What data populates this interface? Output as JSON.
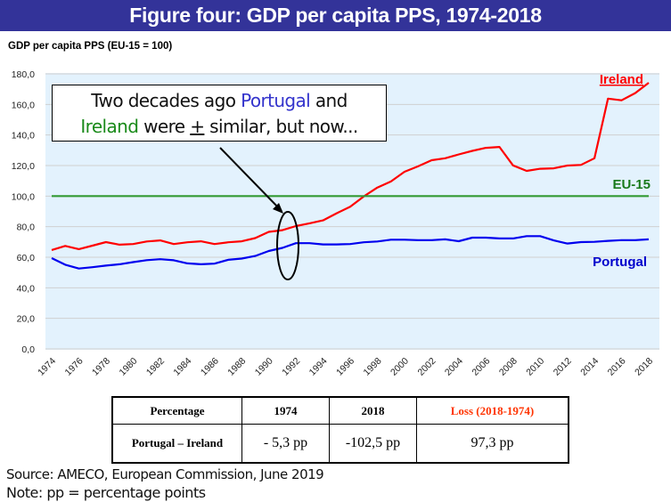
{
  "title": "Figure four: GDP per capita PPS, 1974-2018",
  "callout": {
    "part1": "Two decades ago ",
    "portugal": "Portugal",
    "part2": " and",
    "ireland": "Ireland",
    "part3": " were ",
    "plusminus": "+",
    "part4": " similar, but now..."
  },
  "chart_data": {
    "type": "line",
    "title": "Figure four: GDP per capita PPS, 1974-2018",
    "ylabel": "GDP per capita PPS (EU-15 = 100)",
    "xlabel": "",
    "ylim": [
      0,
      180
    ],
    "yticks": [
      "0,0",
      "20,0",
      "40,0",
      "60,0",
      "80,0",
      "100,0",
      "120,0",
      "140,0",
      "160,0",
      "180,0"
    ],
    "ytick_values": [
      0,
      20,
      40,
      60,
      80,
      100,
      120,
      140,
      160,
      180
    ],
    "grid": true,
    "x": [
      1974,
      1975,
      1976,
      1977,
      1978,
      1979,
      1980,
      1981,
      1982,
      1983,
      1984,
      1985,
      1986,
      1987,
      1988,
      1989,
      1990,
      1991,
      1992,
      1993,
      1994,
      1995,
      1996,
      1997,
      1998,
      1999,
      2000,
      2001,
      2002,
      2003,
      2004,
      2005,
      2006,
      2007,
      2008,
      2009,
      2010,
      2011,
      2012,
      2013,
      2014,
      2015,
      2016,
      2017,
      2018
    ],
    "xtick_labels": [
      "1974",
      "1976",
      "1978",
      "1980",
      "1982",
      "1984",
      "1986",
      "1988",
      "1990",
      "1992",
      "1994",
      "1996",
      "1998",
      "2000",
      "2002",
      "2004",
      "2006",
      "2008",
      "2010",
      "2012",
      "2014",
      "2016",
      "2018"
    ],
    "series": [
      {
        "name": "Ireland",
        "color": "#ff0000",
        "values": [
          64.7,
          67.4,
          65.3,
          67.6,
          69.9,
          68.2,
          68.6,
          70.3,
          71.0,
          68.6,
          69.8,
          70.4,
          68.6,
          69.8,
          70.4,
          72.5,
          76.6,
          77.7,
          80.4,
          82.2,
          84.1,
          88.8,
          93.0,
          99.8,
          105.6,
          109.6,
          115.9,
          119.5,
          123.5,
          124.8,
          127.3,
          129.6,
          131.6,
          132.2,
          120.1,
          116.5,
          117.9,
          118.2,
          120.0,
          120.4,
          124.8,
          163.8,
          162.7,
          167.4,
          174.2
        ]
      },
      {
        "name": "EU-15",
        "color": "#339933",
        "values": [
          100,
          100,
          100,
          100,
          100,
          100,
          100,
          100,
          100,
          100,
          100,
          100,
          100,
          100,
          100,
          100,
          100,
          100,
          100,
          100,
          100,
          100,
          100,
          100,
          100,
          100,
          100,
          100,
          100,
          100,
          100,
          100,
          100,
          100,
          100,
          100,
          100,
          100,
          100,
          100,
          100,
          100,
          100,
          100,
          100
        ]
      },
      {
        "name": "Portugal",
        "color": "#0000ee",
        "values": [
          59.4,
          55.1,
          52.6,
          53.5,
          54.5,
          55.4,
          56.8,
          58.1,
          58.7,
          58.0,
          56.0,
          55.4,
          55.8,
          58.3,
          59.1,
          60.8,
          64.1,
          66.1,
          69.2,
          69.2,
          68.4,
          68.4,
          68.6,
          69.8,
          70.3,
          71.5,
          71.5,
          71.2,
          71.2,
          71.7,
          70.5,
          72.8,
          72.8,
          72.3,
          72.3,
          73.8,
          73.8,
          71.0,
          69.0,
          69.9,
          70.1,
          70.7,
          71.2,
          71.2,
          71.7
        ]
      }
    ],
    "annotations": [
      "Two decades ago Portugal and Ireland were + similar, but now...",
      "Ellipse highlighting 1992 (Portugal vs Ireland)"
    ]
  },
  "labels": {
    "ireland": "Ireland",
    "eu15": "EU-15",
    "portugal": "Portugal"
  },
  "table": {
    "headers": [
      "Percentage",
      "1974",
      "2018",
      "Loss (2018-1974)"
    ],
    "rows": [
      [
        "Portugal – Ireland",
        "- 5,3 pp",
        "-102,5 pp",
        "97,3 pp"
      ]
    ]
  },
  "source": "Source: AMECO, European Commission, June 2019",
  "note": "Note: pp = percentage points"
}
